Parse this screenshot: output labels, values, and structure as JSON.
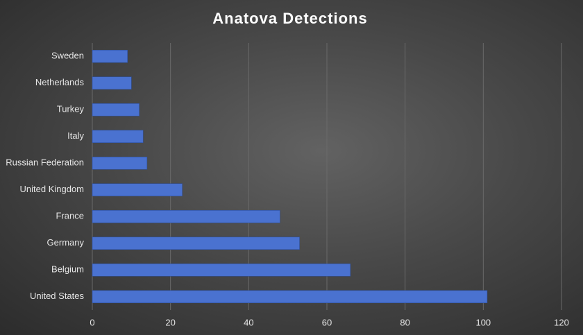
{
  "chart_data": {
    "type": "bar",
    "title": "Anatova Detections",
    "categories": [
      "Sweden",
      "Netherlands",
      "Turkey",
      "Italy",
      "Russian Federation",
      "United Kingdom",
      "France",
      "Germany",
      "Belgium",
      "United States"
    ],
    "values": [
      9,
      10,
      12,
      13,
      14,
      23,
      48,
      53,
      66,
      101
    ],
    "color": "#4a72d0",
    "xlim": [
      0,
      120
    ],
    "xticks": [
      0,
      20,
      40,
      60,
      80,
      100,
      120
    ],
    "grid": true
  }
}
